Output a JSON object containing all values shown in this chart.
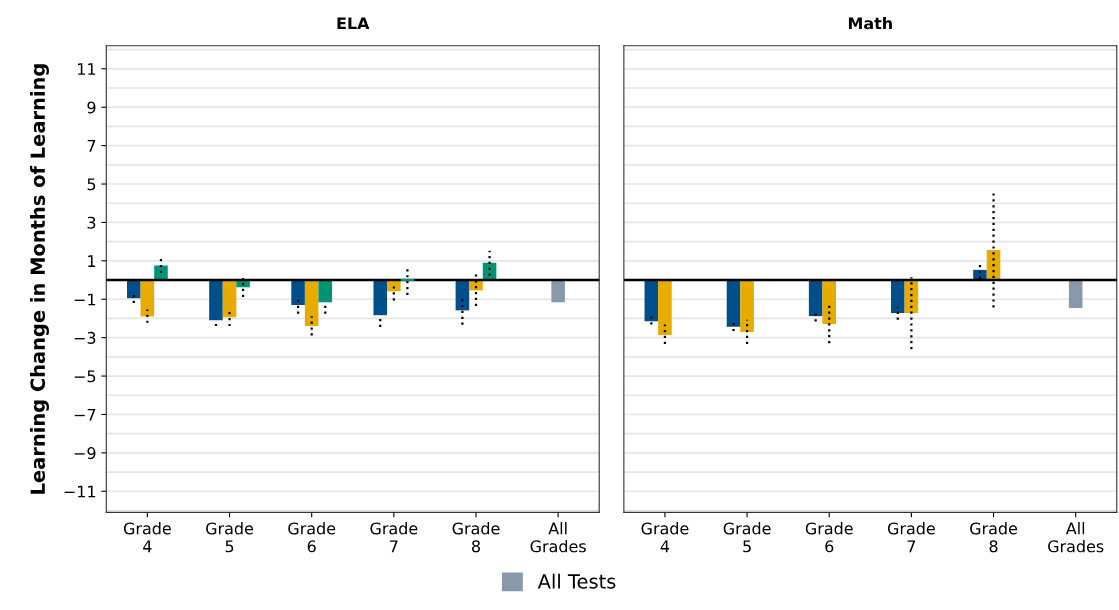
{
  "chart_data": [
    {
      "type": "bar",
      "title": "ELA",
      "ylabel": "Learning Change in Months of Learning",
      "categories": [
        "Grade\n4",
        "Grade\n5",
        "Grade\n6",
        "Grade\n7",
        "Grade\n8",
        "All\nGrades"
      ],
      "series": [
        {
          "color": "#004f8a",
          "values": [
            -0.95,
            -2.09,
            -1.3,
            -1.83,
            -1.58,
            null
          ],
          "errors": [
            [
              -1.2,
              -0.64
            ],
            [
              -2.4,
              -2.09
            ],
            [
              -1.76,
              -0.83
            ],
            [
              -2.45,
              -1.83
            ],
            [
              -2.33,
              -0.85
            ],
            null
          ]
        },
        {
          "color": "#e8ab00",
          "values": [
            -1.9,
            -1.94,
            -2.4,
            -0.59,
            -0.54,
            null
          ],
          "errors": [
            [
              -2.23,
              -1.54
            ],
            [
              -2.4,
              -1.6
            ],
            [
              -2.89,
              -1.89
            ],
            [
              -1.06,
              -0.16
            ],
            [
              -1.35,
              0.29
            ],
            null
          ]
        },
        {
          "color": "#009474",
          "values": [
            0.76,
            -0.38,
            -1.16,
            0,
            0.9,
            null
          ],
          "errors": [
            [
              0.36,
              1.12
            ],
            [
              -0.88,
              0.1
            ],
            [
              -1.76,
              -1.16
            ],
            [
              -0.78,
              0.7
            ],
            [
              0.22,
              1.52
            ],
            null
          ]
        },
        {
          "name": "All Tests",
          "color": "#8899aa",
          "values": [
            null,
            null,
            null,
            null,
            null,
            -1.16
          ]
        }
      ],
      "ylim": [
        -12.1,
        12.2
      ],
      "yticks": [
        {
          "value": -12,
          "label": null
        },
        {
          "value": -11,
          "label": "−11"
        },
        {
          "value": -10,
          "label": null
        },
        {
          "value": -9,
          "label": "−9"
        },
        {
          "value": -8,
          "label": null
        },
        {
          "value": -7,
          "label": "−7"
        },
        {
          "value": -6,
          "label": null
        },
        {
          "value": -5,
          "label": "−5"
        },
        {
          "value": -4,
          "label": null
        },
        {
          "value": -3,
          "label": "−3"
        },
        {
          "value": -2,
          "label": null
        },
        {
          "value": -1,
          "label": "−1"
        },
        {
          "value": 0,
          "label": null
        },
        1,
        {
          "value": 2,
          "label": null
        },
        3,
        {
          "value": 4,
          "label": null
        },
        5,
        {
          "value": 6,
          "label": null
        },
        7,
        {
          "value": 8,
          "label": null
        },
        9,
        {
          "value": 10,
          "label": null
        },
        11,
        {
          "value": 12,
          "label": null
        }
      ],
      "ref_lines": [
        {
          "axis": "y",
          "value": 0,
          "color": "#000000"
        }
      ],
      "grid": "y",
      "legend": "bottom",
      "line_style": "dotted"
    },
    {
      "type": "bar",
      "title": "Math",
      "categories": [
        "Grade\n4",
        "Grade\n5",
        "Grade\n6",
        "Grade\n7",
        "Grade\n8",
        "All\nGrades"
      ],
      "series": [
        {
          "color": "#004f8a",
          "values": [
            -2.14,
            -2.43,
            -1.88,
            -1.72,
            0.53,
            null
          ],
          "errors": [
            [
              -2.31,
              -1.9
            ],
            [
              -2.66,
              -2.24
            ],
            [
              -2.16,
              -1.64
            ],
            [
              -2.07,
              -1.41
            ],
            [
              0.05,
              0.91
            ],
            null
          ]
        },
        {
          "color": "#e8ab00",
          "values": [
            -2.86,
            -2.71,
            -2.29,
            -1.72,
            1.57,
            null
          ],
          "errors": [
            [
              -3.33,
              -2.31
            ],
            [
              -3.33,
              -2.07
            ],
            [
              -3.29,
              -1.28
            ],
            [
              -3.6,
              0.14
            ],
            [
              -1.43,
              4.52
            ],
            null
          ]
        },
        {
          "name": "All Tests",
          "color": "#8899aa",
          "values": [
            null,
            null,
            null,
            null,
            null,
            -1.45
          ]
        }
      ],
      "ylim": [
        -12.1,
        12.2
      ],
      "yticks": [
        {
          "value": -12,
          "label": null
        },
        {
          "value": -11,
          "label": null
        },
        {
          "value": -10,
          "label": null
        },
        {
          "value": -9,
          "label": null
        },
        {
          "value": -8,
          "label": null
        },
        {
          "value": -7,
          "label": null
        },
        {
          "value": -6,
          "label": null
        },
        {
          "value": -5,
          "label": null
        },
        {
          "value": -4,
          "label": null
        },
        {
          "value": -3,
          "label": null
        },
        {
          "value": -2,
          "label": null
        },
        {
          "value": -1,
          "label": null
        },
        {
          "value": 0,
          "label": null
        },
        {
          "value": 1,
          "label": null
        },
        {
          "value": 2,
          "label": null
        },
        {
          "value": 3,
          "label": null
        },
        {
          "value": 4,
          "label": null
        },
        {
          "value": 5,
          "label": null
        },
        {
          "value": 6,
          "label": null
        },
        {
          "value": 7,
          "label": null
        },
        {
          "value": 8,
          "label": null
        },
        {
          "value": 9,
          "label": null
        },
        {
          "value": 10,
          "label": null
        },
        {
          "value": 11,
          "label": null
        },
        {
          "value": 12,
          "label": null
        }
      ],
      "ref_lines": [
        {
          "axis": "y",
          "value": 0,
          "color": "#000000"
        }
      ],
      "grid": "y",
      "tick_labels": "x",
      "line_style": "dotted"
    }
  ]
}
